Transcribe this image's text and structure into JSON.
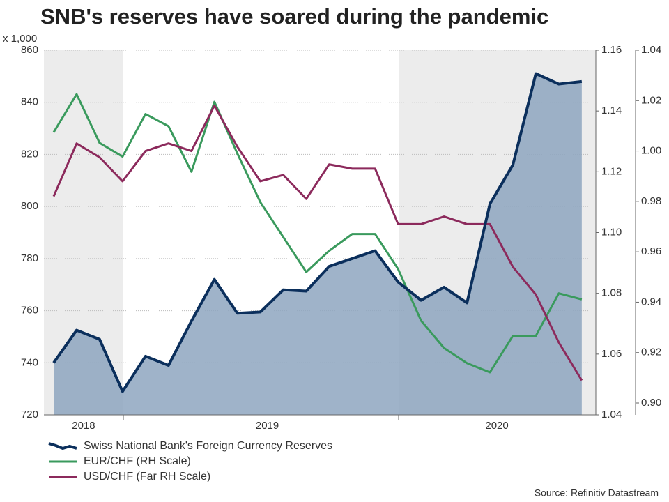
{
  "chart_data": {
    "type": "line",
    "title": "SNB's reserves have soared during the pandemic",
    "ylabel": "x 1,000",
    "source": "Source: Refinitiv Datastream",
    "categories": [
      null,
      "2018",
      null,
      null,
      null,
      null,
      null,
      null,
      null,
      "2019",
      null,
      null,
      null,
      null,
      null,
      null,
      null,
      null,
      null,
      "2020",
      null,
      null,
      null,
      null
    ],
    "series": [
      {
        "name": "Swiss National Bank's Foreign Currency Reserves",
        "color": "#0b2f5c",
        "fill": "#8ea6bf",
        "axis": "y",
        "values": [
          740,
          752.5,
          749,
          729,
          742.5,
          739,
          756,
          772,
          759,
          759.5,
          768,
          767.5,
          777,
          780,
          783,
          771,
          764,
          769,
          763,
          801,
          816,
          851,
          847,
          848
        ]
      },
      {
        "name": "EUR/CHF (RH Scale)",
        "color": "#3a9a5d",
        "axis": "y2",
        "values": [
          1.133,
          1.1455,
          1.1295,
          1.125,
          1.139,
          1.135,
          1.12,
          1.143,
          1.126,
          1.11,
          1.0985,
          1.087,
          1.094,
          1.0995,
          1.0995,
          1.088,
          1.071,
          1.062,
          1.057,
          1.054,
          1.066,
          1.066,
          1.08,
          1.078
        ]
      },
      {
        "name": "USD/CHF (Far RH Scale)",
        "color": "#8c2a5c",
        "axis": "y3",
        "values": [
          0.982,
          1.003,
          0.9975,
          0.988,
          1.0,
          1.003,
          1.0,
          1.018,
          1.0017,
          0.988,
          0.9905,
          0.981,
          0.9947,
          0.993,
          0.993,
          0.971,
          0.971,
          0.974,
          0.971,
          0.971,
          0.954,
          0.943,
          0.924,
          0.909
        ]
      }
    ],
    "ylim": [
      720,
      860
    ],
    "yticks": [
      720,
      740,
      760,
      780,
      800,
      820,
      840,
      860
    ],
    "y2lim": [
      1.04,
      1.16
    ],
    "y2ticks": [
      1.04,
      1.06,
      1.08,
      {
        "value": 1.1,
        "label": "1.10"
      },
      1.12,
      1.14,
      1.16
    ],
    "y3lim": [
      0.8953,
      1.04
    ],
    "y3ticks": [
      {
        "value": 0.9,
        "label": "0.90"
      },
      0.92,
      0.94,
      0.96,
      0.98,
      {
        "value": 1,
        "label": "1.00"
      },
      1.02,
      1.04
    ],
    "grid": true
  }
}
